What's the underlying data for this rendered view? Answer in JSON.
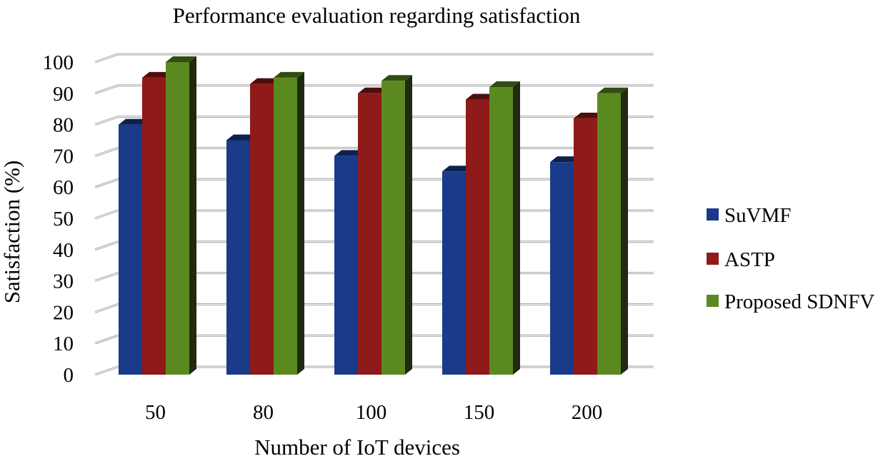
{
  "chart_data": {
    "type": "bar",
    "title": "Performance evaluation regarding satisfaction",
    "xlabel": "Number of IoT devices",
    "ylabel": "Satisfaction (%)",
    "categories": [
      "50",
      "80",
      "100",
      "150",
      "200"
    ],
    "ylim": [
      0,
      100
    ],
    "yticks": [
      0,
      10,
      20,
      30,
      40,
      50,
      60,
      70,
      80,
      90,
      100
    ],
    "grid": true,
    "style": "3d-clustered",
    "legend_position": "right",
    "series": [
      {
        "name": "SuVMF",
        "color": "#1a3a8a",
        "values": [
          80,
          75,
          70,
          65,
          68
        ]
      },
      {
        "name": "ASTP",
        "color": "#8e1a1a",
        "values": [
          95,
          93,
          90,
          88,
          82
        ]
      },
      {
        "name": "Proposed SDNFV",
        "color": "#5a8a1f",
        "values": [
          100,
          95,
          94,
          92,
          90
        ]
      }
    ]
  }
}
